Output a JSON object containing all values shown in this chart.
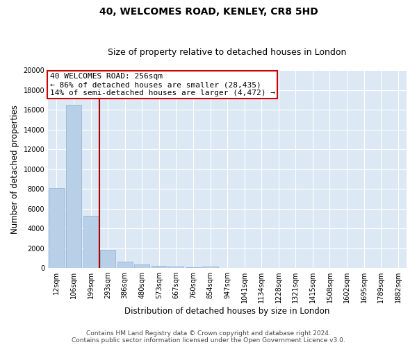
{
  "title": "40, WELCOMES ROAD, KENLEY, CR8 5HD",
  "subtitle": "Size of property relative to detached houses in London",
  "xlabel": "Distribution of detached houses by size in London",
  "ylabel": "Number of detached properties",
  "categories": [
    "12sqm",
    "106sqm",
    "199sqm",
    "293sqm",
    "386sqm",
    "480sqm",
    "573sqm",
    "667sqm",
    "760sqm",
    "854sqm",
    "947sqm",
    "1041sqm",
    "1134sqm",
    "1228sqm",
    "1321sqm",
    "1415sqm",
    "1508sqm",
    "1602sqm",
    "1695sqm",
    "1789sqm",
    "1882sqm"
  ],
  "values": [
    8050,
    16500,
    5300,
    1800,
    620,
    340,
    190,
    150,
    100,
    140,
    0,
    0,
    0,
    0,
    0,
    0,
    0,
    0,
    0,
    0,
    0
  ],
  "bar_color": "#b8cfe8",
  "bar_edge_color": "#8eb0d4",
  "background_color": "#dde8f5",
  "grid_color": "#ffffff",
  "ylim": [
    0,
    20000
  ],
  "yticks": [
    0,
    2000,
    4000,
    6000,
    8000,
    10000,
    12000,
    14000,
    16000,
    18000,
    20000
  ],
  "property_label": "40 WELCOMES ROAD: 256sqm",
  "annotation_line1": "← 86% of detached houses are smaller (28,435)",
  "annotation_line2": "14% of semi-detached houses are larger (4,472) →",
  "vline_color": "#aa0000",
  "annotation_box_color": "#cc0000",
  "footnote_line1": "Contains HM Land Registry data © Crown copyright and database right 2024.",
  "footnote_line2": "Contains public sector information licensed under the Open Government Licence v3.0.",
  "title_fontsize": 10,
  "subtitle_fontsize": 9,
  "axis_label_fontsize": 8.5,
  "tick_fontsize": 7,
  "annotation_fontsize": 8,
  "footnote_fontsize": 6.5,
  "vline_x": 2.5
}
